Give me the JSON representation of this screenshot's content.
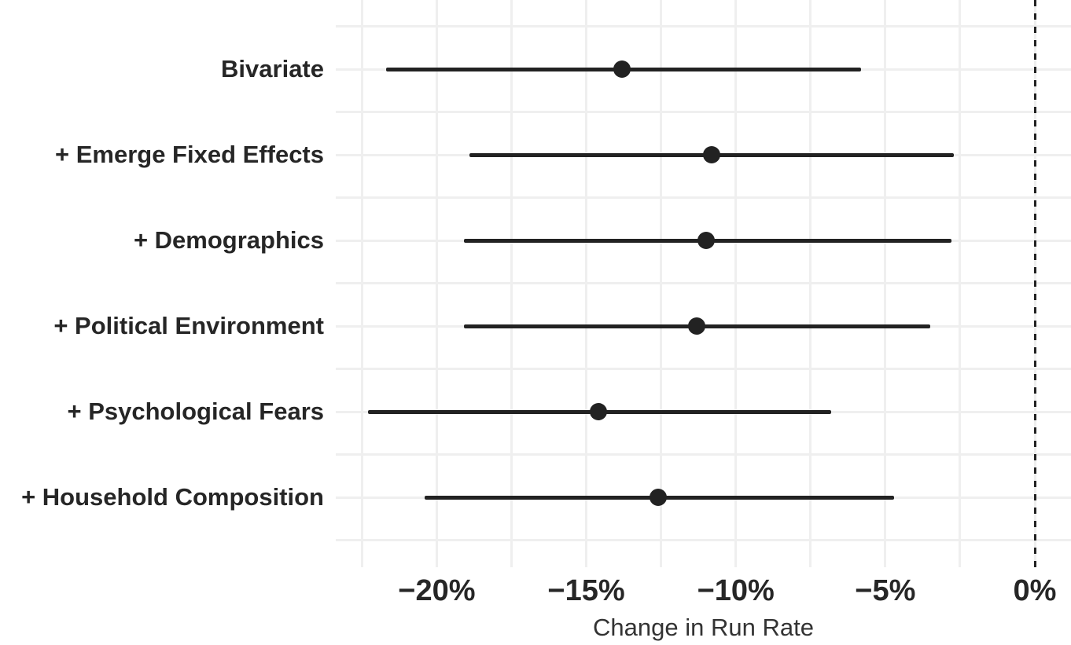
{
  "chart_data": {
    "type": "scatter",
    "subtype": "horizontal-dot-whisker",
    "title": "",
    "xlabel": "Change in Run Rate",
    "ylabel": "",
    "categories": [
      "Bivariate",
      "+ Emerge Fixed Effects",
      "+ Demographics",
      "+ Political Environment",
      "+ Psychological Fears",
      "+ Household Composition"
    ],
    "points": [
      {
        "label": "Bivariate",
        "estimate": -13.8,
        "ci_low": -21.7,
        "ci_high": -5.8
      },
      {
        "label": "+ Emerge Fixed Effects",
        "estimate": -10.8,
        "ci_low": -18.9,
        "ci_high": -2.7
      },
      {
        "label": "+ Demographics",
        "estimate": -11.0,
        "ci_low": -19.1,
        "ci_high": -2.8
      },
      {
        "label": "+ Political Environment",
        "estimate": -11.3,
        "ci_low": -19.1,
        "ci_high": -3.5
      },
      {
        "label": "+ Psychological Fears",
        "estimate": -14.6,
        "ci_low": -22.3,
        "ci_high": -6.8
      },
      {
        "label": "+ Household Composition",
        "estimate": -12.6,
        "ci_low": -20.4,
        "ci_high": -4.7
      }
    ],
    "x_ticks": [
      {
        "label": "−20%",
        "value": -20
      },
      {
        "label": "−15%",
        "value": -15
      },
      {
        "label": "−10%",
        "value": -10
      },
      {
        "label": "−5%",
        "value": -5
      },
      {
        "label": "0%",
        "value": 0
      }
    ],
    "xlim": [
      -23.4,
      1.2
    ],
    "minor_grid_step_x": 2.5,
    "grid": "on",
    "legend": "none",
    "reference_line": {
      "value": 0,
      "style": "dashed",
      "color": "#222222"
    },
    "colors": {
      "point": "#222222",
      "whisker": "#222222",
      "gridline": "#efefef",
      "tick_label": "#262626",
      "category_label": "#262626",
      "axis_title": "#333333",
      "background": "#ffffff"
    }
  }
}
